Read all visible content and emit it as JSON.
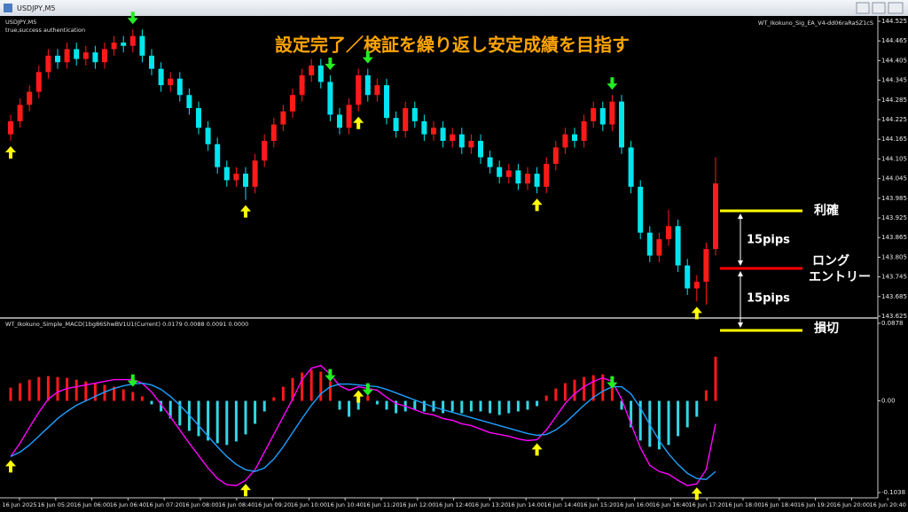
{
  "window_title": "USDJPY,M5",
  "chart_data": [
    {
      "type": "candlestick",
      "symbol": "USDJPY,M5",
      "status": "true,success authentication",
      "ea_label": "WT_Ikokuno_Sig_EA_V4-dd06raRaSZ1cS",
      "title": "設定完了／検証を繰り返し安定成績を目指す",
      "open": [
        144.18,
        144.22,
        144.27,
        144.31,
        144.37,
        144.42,
        144.4,
        144.44,
        144.41,
        144.43,
        144.4,
        144.44,
        144.46,
        144.45,
        144.48,
        144.42,
        144.38,
        144.33,
        144.35,
        144.3,
        144.26,
        144.2,
        144.15,
        144.08,
        144.04,
        144.06,
        144.02,
        144.1,
        144.16,
        144.21,
        144.25,
        144.3,
        144.36,
        144.39,
        144.34,
        144.24,
        144.2,
        144.27,
        144.36,
        144.3,
        144.33,
        144.23,
        144.19,
        144.26,
        144.22,
        144.18,
        144.2,
        144.16,
        144.18,
        144.14,
        144.16,
        144.11,
        144.08,
        144.05,
        144.07,
        144.03,
        144.06,
        144.02,
        144.09,
        144.14,
        144.18,
        144.16,
        144.22,
        144.26,
        144.21,
        144.28,
        144.14,
        144.02,
        143.88,
        143.81,
        143.86,
        143.9,
        143.78,
        143.71,
        143.73,
        143.83
      ],
      "high": [
        144.24,
        144.29,
        144.33,
        144.39,
        144.44,
        144.44,
        144.46,
        144.46,
        144.45,
        144.45,
        144.46,
        144.48,
        144.48,
        144.5,
        144.5,
        144.44,
        144.4,
        144.37,
        144.37,
        144.32,
        144.28,
        144.22,
        144.17,
        144.1,
        144.08,
        144.08,
        144.12,
        144.18,
        144.23,
        144.27,
        144.32,
        144.38,
        144.41,
        144.41,
        144.36,
        144.26,
        144.29,
        144.38,
        144.38,
        144.35,
        144.35,
        144.25,
        144.28,
        144.28,
        144.24,
        144.22,
        144.22,
        144.2,
        144.2,
        144.18,
        144.18,
        144.13,
        144.1,
        144.09,
        144.09,
        144.08,
        144.08,
        144.11,
        144.16,
        144.2,
        144.2,
        144.24,
        144.28,
        144.28,
        144.3,
        144.3,
        144.16,
        144.04,
        143.9,
        143.88,
        143.95,
        143.92,
        143.8,
        143.75,
        143.85,
        144.11
      ],
      "low": [
        144.16,
        144.2,
        144.25,
        144.29,
        144.35,
        144.38,
        144.38,
        144.39,
        144.39,
        144.38,
        144.38,
        144.42,
        144.43,
        144.43,
        144.4,
        144.36,
        144.31,
        144.31,
        144.28,
        144.24,
        144.18,
        144.13,
        144.06,
        144.02,
        144.02,
        143.98,
        144.0,
        144.08,
        144.14,
        144.19,
        144.23,
        144.28,
        144.34,
        144.32,
        144.22,
        144.18,
        144.18,
        144.25,
        144.28,
        144.28,
        144.21,
        144.17,
        144.17,
        144.2,
        144.16,
        144.16,
        144.14,
        144.14,
        144.12,
        144.12,
        144.09,
        144.06,
        144.03,
        144.03,
        144.01,
        144.01,
        144.0,
        144.0,
        144.07,
        144.12,
        144.14,
        144.14,
        144.2,
        144.19,
        144.19,
        144.12,
        144.0,
        143.86,
        143.79,
        143.79,
        143.84,
        143.76,
        143.69,
        143.67,
        143.66,
        143.81
      ],
      "close": [
        144.22,
        144.27,
        144.31,
        144.37,
        144.42,
        144.4,
        144.44,
        144.41,
        144.43,
        144.4,
        144.44,
        144.46,
        144.45,
        144.48,
        144.42,
        144.38,
        144.33,
        144.35,
        144.3,
        144.26,
        144.2,
        144.15,
        144.08,
        144.04,
        144.06,
        144.02,
        144.1,
        144.16,
        144.21,
        144.25,
        144.3,
        144.36,
        144.39,
        144.34,
        144.24,
        144.2,
        144.27,
        144.36,
        144.3,
        144.33,
        144.23,
        144.19,
        144.26,
        144.22,
        144.18,
        144.2,
        144.16,
        144.18,
        144.14,
        144.16,
        144.11,
        144.08,
        144.05,
        144.07,
        144.03,
        144.06,
        144.02,
        144.09,
        144.14,
        144.18,
        144.16,
        144.22,
        144.26,
        144.21,
        144.28,
        144.14,
        144.02,
        143.88,
        143.81,
        143.86,
        143.9,
        143.78,
        143.71,
        143.73,
        143.83,
        144.03
      ],
      "up_color": "#ff1a1a",
      "down_color": "#00e5ee",
      "ylim": [
        143.625,
        144.525
      ],
      "yticks": [
        144.525,
        144.465,
        144.405,
        144.345,
        144.285,
        144.225,
        144.165,
        144.105,
        144.045,
        143.985,
        143.925,
        143.865,
        143.805,
        143.745,
        143.685,
        143.625
      ],
      "buy_signals": [
        0,
        25,
        37,
        56,
        73
      ],
      "sell_signals": [
        13,
        34,
        38,
        64
      ],
      "time_labels": [
        "16 Jun 2025",
        "16 Jun 05:20",
        "16 Jun 06:00",
        "16 Jun 06:40",
        "16 Jun 07:20",
        "16 Jun 08:00",
        "16 Jun 08:40",
        "16 Jun 09:20",
        "16 Jun 10:00",
        "16 Jun 10:40",
        "16 Jun 11:20",
        "16 Jun 12:00",
        "16 Jun 12:40",
        "16 Jun 13:20",
        "16 Jun 14:00",
        "16 Jun 14:40",
        "16 Jun 15:20",
        "16 Jun 16:00",
        "16 Jun 16:40",
        "16 Jun 17:20",
        "16 Jun 18:00",
        "16 Jun 18:40",
        "16 Jun 19:20",
        "16 Jun 20:00",
        "16 Jun 20:40"
      ],
      "annotations": {
        "take_profit": "利確",
        "entry": [
          "ロング",
          "エントリー"
        ],
        "stop_loss": "損切",
        "tp_distance": "15pips",
        "sl_distance": "15pips"
      }
    },
    {
      "type": "macd",
      "label": "WT_Ikokuno_Simple_MACD(1bg86ShwBV1U1(Current) 0.0179 0.0088 0.0091 0.0000",
      "histogram": [
        0.015,
        0.02,
        0.024,
        0.027,
        0.028,
        0.027,
        0.026,
        0.024,
        0.022,
        0.02,
        0.018,
        0.016,
        0.013,
        0.01,
        0.005,
        -0.004,
        -0.012,
        -0.02,
        -0.028,
        -0.034,
        -0.04,
        -0.045,
        -0.048,
        -0.05,
        -0.046,
        -0.038,
        -0.026,
        -0.012,
        0.004,
        0.016,
        0.026,
        0.032,
        0.035,
        0.033,
        0.022,
        -0.01,
        -0.018,
        -0.01,
        0.006,
        -0.004,
        -0.01,
        -0.014,
        -0.012,
        -0.01,
        -0.012,
        -0.012,
        -0.014,
        -0.012,
        -0.014,
        -0.012,
        -0.012,
        -0.014,
        -0.016,
        -0.014,
        -0.012,
        -0.01,
        -0.006,
        0.006,
        0.014,
        0.02,
        0.024,
        0.027,
        0.029,
        0.03,
        0.026,
        -0.01,
        -0.03,
        -0.045,
        -0.052,
        -0.055,
        -0.05,
        -0.04,
        -0.03,
        -0.018,
        0.012,
        0.05
      ],
      "up_color": "#ff1a1a",
      "down_color": "#33d6e6",
      "series": [
        {
          "color": "#ff00ff",
          "values": [
            -0.063,
            -0.048,
            -0.03,
            -0.013,
            0.002,
            0.01,
            0.014,
            0.016,
            0.018,
            0.02,
            0.022,
            0.024,
            0.024,
            0.024,
            0.02,
            0.01,
            -0.004,
            -0.018,
            -0.033,
            -0.048,
            -0.062,
            -0.076,
            -0.088,
            -0.095,
            -0.096,
            -0.09,
            -0.078,
            -0.058,
            -0.038,
            -0.018,
            0.002,
            0.024,
            0.037,
            0.04,
            0.03,
            0.017,
            0.012,
            0.016,
            0.014,
            0.012,
            0.004,
            -0.003,
            -0.006,
            -0.01,
            -0.014,
            -0.016,
            -0.02,
            -0.022,
            -0.026,
            -0.028,
            -0.032,
            -0.036,
            -0.038,
            -0.04,
            -0.043,
            -0.045,
            -0.044,
            -0.033,
            -0.018,
            -0.003,
            0.008,
            0.016,
            0.022,
            0.026,
            0.022,
            0.002,
            -0.026,
            -0.053,
            -0.073,
            -0.08,
            -0.083,
            -0.09,
            -0.096,
            -0.094,
            -0.078,
            -0.026
          ]
        },
        {
          "color": "#1ea0ff",
          "values": [
            -0.063,
            -0.058,
            -0.05,
            -0.04,
            -0.03,
            -0.02,
            -0.012,
            -0.005,
            0.0,
            0.005,
            0.01,
            0.014,
            0.017,
            0.019,
            0.02,
            0.018,
            0.013,
            0.005,
            -0.005,
            -0.016,
            -0.028,
            -0.04,
            -0.052,
            -0.063,
            -0.072,
            -0.078,
            -0.08,
            -0.076,
            -0.066,
            -0.052,
            -0.036,
            -0.02,
            -0.005,
            0.008,
            0.016,
            0.019,
            0.019,
            0.018,
            0.017,
            0.016,
            0.013,
            0.009,
            0.005,
            0.001,
            -0.003,
            -0.007,
            -0.01,
            -0.013,
            -0.016,
            -0.019,
            -0.022,
            -0.025,
            -0.028,
            -0.031,
            -0.034,
            -0.037,
            -0.039,
            -0.038,
            -0.033,
            -0.025,
            -0.015,
            -0.005,
            0.004,
            0.011,
            0.016,
            0.016,
            0.008,
            -0.008,
            -0.027,
            -0.045,
            -0.06,
            -0.072,
            -0.082,
            -0.088,
            -0.089,
            -0.08
          ]
        }
      ],
      "ylim": [
        -0.1038,
        0.0878
      ],
      "yticks": [
        0.0878,
        {
          "value": 0,
          "label": "0.00"
        },
        -0.1038
      ]
    }
  ]
}
